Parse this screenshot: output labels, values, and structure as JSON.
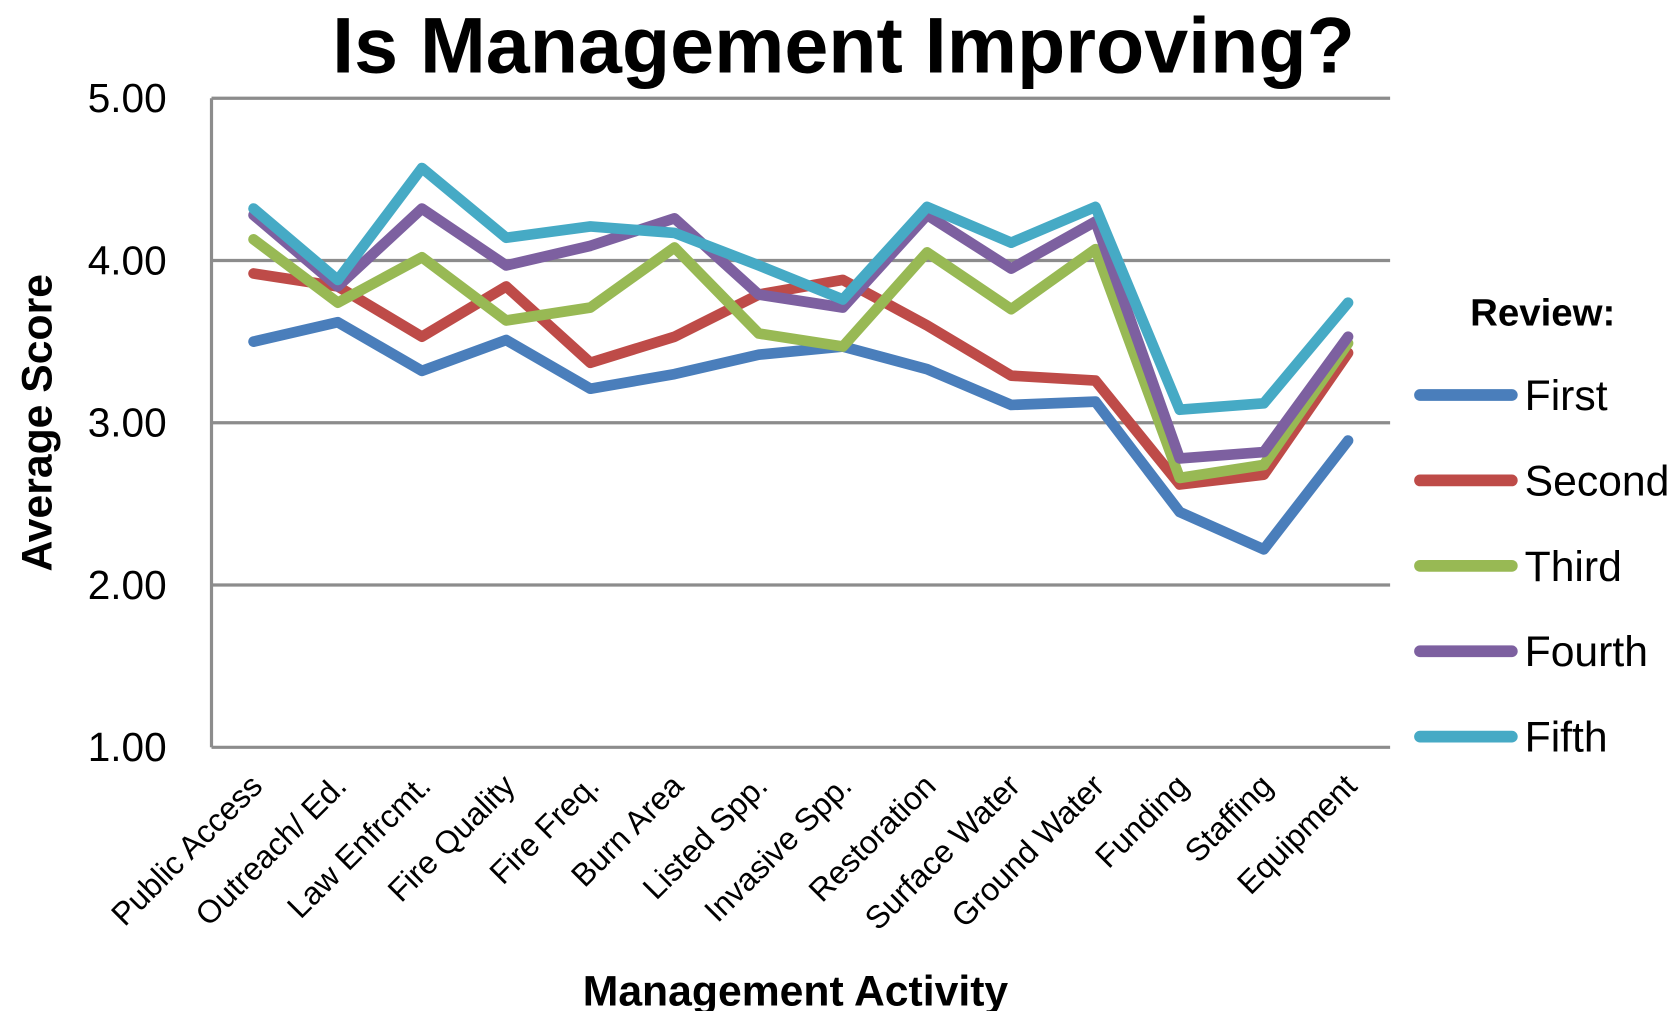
{
  "chart_data": {
    "type": "line",
    "title": "Is Management Improving?",
    "x_label": "Management Activity",
    "y_label": "Average Score",
    "legend_title": "Review:",
    "legend_position": "right",
    "grid": true,
    "categories": [
      "Public Access",
      "Outreach/ Ed.",
      "Law Enfrcmt.",
      "Fire Quality",
      "Fire Freq.",
      "Burn Area",
      "Listed Spp.",
      "Invasive Spp.",
      "Restoration",
      "Surface Water",
      "Ground Water",
      "Funding",
      "Staffing",
      "Equipment"
    ],
    "ylim": [
      1,
      5
    ],
    "yticks": [
      {
        "value": 1,
        "label": "1.00"
      },
      {
        "value": 2,
        "label": "2.00"
      },
      {
        "value": 3,
        "label": "3.00"
      },
      {
        "value": 4,
        "label": "4.00"
      },
      {
        "value": 5,
        "label": "5.00"
      }
    ],
    "series": [
      {
        "name": "First",
        "color": "#4a7ebb",
        "values": [
          3.5,
          3.62,
          3.32,
          3.51,
          3.21,
          3.3,
          3.42,
          3.47,
          3.33,
          3.11,
          3.13,
          2.45,
          2.22,
          2.89
        ]
      },
      {
        "name": "Second",
        "color": "#be4b48",
        "values": [
          3.92,
          3.84,
          3.53,
          3.84,
          3.37,
          3.53,
          3.79,
          3.88,
          3.6,
          3.29,
          3.26,
          2.62,
          2.68,
          3.43
        ]
      },
      {
        "name": "Third",
        "color": "#98b954",
        "values": [
          4.13,
          3.74,
          4.02,
          3.63,
          3.71,
          4.08,
          3.55,
          3.47,
          4.05,
          3.7,
          4.07,
          2.66,
          2.74,
          3.49
        ]
      },
      {
        "name": "Fourth",
        "color": "#7d60a0",
        "values": [
          4.28,
          3.84,
          4.32,
          3.97,
          4.09,
          4.26,
          3.79,
          3.71,
          4.28,
          3.95,
          4.24,
          2.78,
          2.82,
          3.53
        ]
      },
      {
        "name": "Fifth",
        "color": "#46aac5",
        "values": [
          4.32,
          3.88,
          4.57,
          4.14,
          4.21,
          4.17,
          3.97,
          3.76,
          4.33,
          4.11,
          4.33,
          3.08,
          3.12,
          3.74
        ]
      }
    ]
  }
}
